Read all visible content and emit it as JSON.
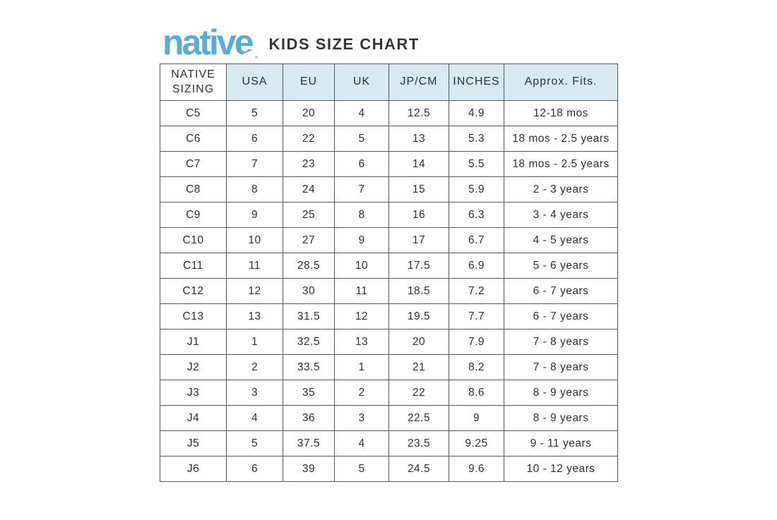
{
  "brand": {
    "logo_text": "native",
    "title": "KIDS SIZE CHART"
  },
  "colors": {
    "logo_blue": "#55addb",
    "header_bg": "#d8e9f2",
    "border_gray": "#55575b",
    "text_dark": "#2e3136"
  },
  "chart_data": {
    "type": "table",
    "title": "native KIDS SIZE CHART",
    "columns": [
      "NATIVE SIZING",
      "USA",
      "EU",
      "UK",
      "JP/CM",
      "INCHES",
      "Approx. Fits."
    ],
    "rows": [
      [
        "C5",
        "5",
        "20",
        "4",
        "12.5",
        "4.9",
        "12-18 mos"
      ],
      [
        "C6",
        "6",
        "22",
        "5",
        "13",
        "5.3",
        "18 mos - 2.5 years"
      ],
      [
        "C7",
        "7",
        "23",
        "6",
        "14",
        "5.5",
        "18 mos - 2.5 years"
      ],
      [
        "C8",
        "8",
        "24",
        "7",
        "15",
        "5.9",
        "2 - 3 years"
      ],
      [
        "C9",
        "9",
        "25",
        "8",
        "16",
        "6.3",
        "3 - 4 years"
      ],
      [
        "C10",
        "10",
        "27",
        "9",
        "17",
        "6.7",
        "4 - 5 years"
      ],
      [
        "C11",
        "11",
        "28.5",
        "10",
        "17.5",
        "6.9",
        "5 - 6 years"
      ],
      [
        "C12",
        "12",
        "30",
        "11",
        "18.5",
        "7.2",
        "6 - 7 years"
      ],
      [
        "C13",
        "13",
        "31.5",
        "12",
        "19.5",
        "7.7",
        "6 - 7 years"
      ],
      [
        "J1",
        "1",
        "32.5",
        "13",
        "20",
        "7.9",
        "7 - 8 years"
      ],
      [
        "J2",
        "2",
        "33.5",
        "1",
        "21",
        "8.2",
        "7 - 8 years"
      ],
      [
        "J3",
        "3",
        "35",
        "2",
        "22",
        "8.6",
        "8 - 9 years"
      ],
      [
        "J4",
        "4",
        "36",
        "3",
        "22.5",
        "9",
        "8 - 9 years"
      ],
      [
        "J5",
        "5",
        "37.5",
        "4",
        "23.5",
        "9.25",
        "9 - 11 years"
      ],
      [
        "J6",
        "6",
        "39",
        "5",
        "24.5",
        "9.6",
        "10 - 12 years"
      ]
    ]
  }
}
